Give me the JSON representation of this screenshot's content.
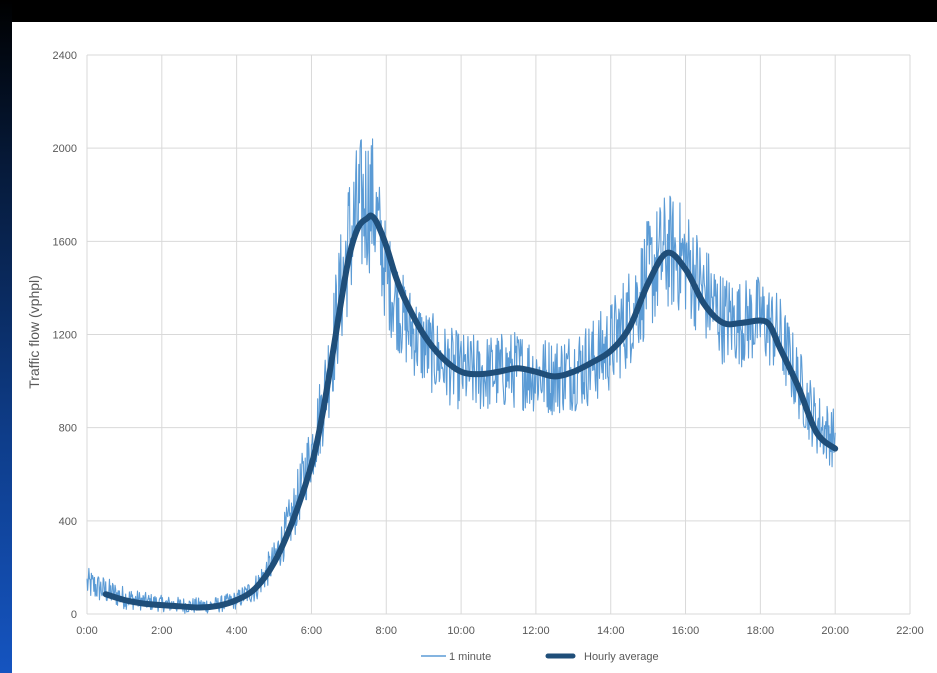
{
  "chart_data": {
    "type": "line",
    "title": "",
    "xlabel": "",
    "ylabel": "Traffic flow (vphpl)",
    "xlim_hours": [
      0,
      22
    ],
    "x_ticks": [
      "0:00",
      "2:00",
      "4:00",
      "6:00",
      "8:00",
      "10:00",
      "12:00",
      "14:00",
      "16:00",
      "18:00",
      "20:00",
      "22:00"
    ],
    "ylim": [
      0,
      2400
    ],
    "y_ticks": [
      0,
      400,
      800,
      1200,
      1600,
      2000,
      2400
    ],
    "grid": true,
    "legend_position": "bottom",
    "series": [
      {
        "name": "1 minute",
        "color": "#5b9bd5",
        "style": "thin-noisy",
        "x_hours": [
          0.0,
          0.5,
          1.0,
          1.5,
          2.0,
          2.5,
          3.0,
          3.5,
          4.0,
          4.5,
          5.0,
          5.5,
          6.0,
          6.25,
          6.5,
          6.75,
          7.0,
          7.25,
          7.5,
          7.65,
          7.75,
          8.0,
          8.5,
          9.0,
          9.5,
          10.0,
          10.5,
          11.0,
          11.5,
          12.0,
          12.5,
          13.0,
          13.5,
          14.0,
          14.5,
          15.0,
          15.5,
          16.0,
          16.5,
          17.0,
          17.5,
          18.0,
          18.5,
          19.0,
          19.5,
          20.0
        ],
        "values": [
          130,
          100,
          70,
          55,
          45,
          38,
          35,
          40,
          60,
          110,
          230,
          420,
          700,
          860,
          1080,
          1350,
          1600,
          1720,
          1780,
          1760,
          1680,
          1450,
          1250,
          1150,
          1080,
          1040,
          1030,
          1040,
          1050,
          1030,
          1020,
          1050,
          1080,
          1150,
          1280,
          1450,
          1560,
          1520,
          1380,
          1270,
          1250,
          1270,
          1200,
          1000,
          820,
          750
        ],
        "amplitude": [
          70,
          60,
          50,
          40,
          35,
          35,
          35,
          35,
          40,
          60,
          80,
          120,
          150,
          180,
          220,
          260,
          300,
          320,
          320,
          300,
          260,
          220,
          190,
          180,
          170,
          170,
          170,
          170,
          170,
          170,
          170,
          180,
          190,
          200,
          220,
          250,
          260,
          240,
          220,
          200,
          190,
          190,
          180,
          160,
          140,
          130
        ]
      },
      {
        "name": "Hourly average",
        "color": "#1f4e79",
        "style": "thick-smooth",
        "x_hours": [
          0.5,
          1.0,
          1.5,
          2.0,
          2.5,
          3.0,
          3.5,
          4.0,
          4.5,
          5.0,
          5.5,
          6.0,
          6.25,
          6.5,
          6.75,
          7.0,
          7.25,
          7.5,
          7.6,
          7.75,
          8.0,
          8.25,
          8.5,
          9.0,
          9.5,
          10.0,
          10.5,
          11.0,
          11.5,
          12.0,
          12.5,
          13.0,
          13.5,
          14.0,
          14.5,
          15.0,
          15.5,
          16.0,
          16.5,
          17.0,
          17.5,
          18.0,
          18.25,
          18.5,
          19.0,
          19.5,
          20.0
        ],
        "values": [
          85,
          60,
          45,
          38,
          33,
          28,
          35,
          60,
          110,
          220,
          400,
          640,
          820,
          1050,
          1300,
          1530,
          1660,
          1700,
          1710,
          1680,
          1580,
          1450,
          1350,
          1200,
          1100,
          1040,
          1030,
          1040,
          1055,
          1040,
          1020,
          1040,
          1080,
          1130,
          1230,
          1420,
          1550,
          1480,
          1330,
          1250,
          1250,
          1260,
          1240,
          1150,
          980,
          780,
          710
        ]
      }
    ]
  }
}
